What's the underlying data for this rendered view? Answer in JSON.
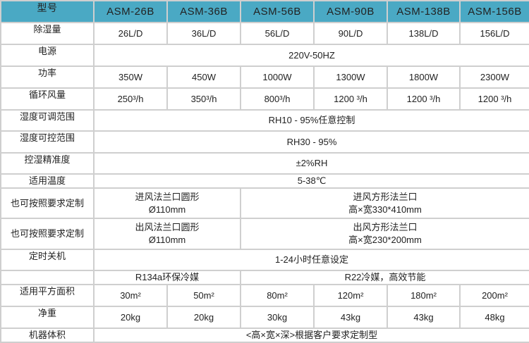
{
  "header": {
    "label": "型号",
    "models": [
      "ASM-26B",
      "ASM-36B",
      "ASM-56B",
      "ASM-90B",
      "ASM-138B",
      "ASM-156B"
    ]
  },
  "colors": {
    "header_bg": "#4aa9c4",
    "border": "#cfcfcf"
  },
  "rows": {
    "dehumid": {
      "label": "除湿量",
      "values": [
        "26L/D",
        "36L/D",
        "56L/D",
        "90L/D",
        "138L/D",
        "156L/D"
      ]
    },
    "power_supply": {
      "label": "电源",
      "value": "220V-50HZ"
    },
    "power": {
      "label": "功率",
      "values": [
        "350W",
        "450W",
        "1000W",
        "1300W",
        "1800W",
        "2300W"
      ]
    },
    "airflow": {
      "label": "循环风量",
      "values": [
        "250³/h",
        "350³/h",
        "800³/h",
        "1200 ³/h",
        "1200 ³/h",
        "1200 ³/h"
      ]
    },
    "adj_range": {
      "label": "湿度可调范围",
      "value": "RH10 - 95%任意控制"
    },
    "ctrl_range": {
      "label": "湿度可控范围",
      "value": "RH30 - 95%"
    },
    "precision": {
      "label": "控湿精准度",
      "value": "±2%RH"
    },
    "temp": {
      "label": "适用温度",
      "value": "5-38℃"
    },
    "inlet": {
      "label": "也可按照要求定制",
      "a1": "进风法兰口圆形",
      "a2": "Ø110mm",
      "b1": "进风方形法兰口",
      "b2": "高×宽330*410mm"
    },
    "outlet": {
      "label": "也可按照要求定制",
      "a1": "出风法兰口圆形",
      "a2": "Ø110mm",
      "b1": "出风方形法兰口",
      "b2": "高×宽230*200mm"
    },
    "timer": {
      "label": "定时关机",
      "value": "1-24小时任意设定"
    },
    "refrigerant": {
      "label": "",
      "a": "R134a环保冷媒",
      "b": "R22冷媒，高效节能"
    },
    "area": {
      "label": "适用平方面积",
      "values": [
        "30m²",
        "50m²",
        "80m²",
        "120m²",
        "180m²",
        "200m²"
      ]
    },
    "weight": {
      "label": "净重",
      "values": [
        "20kg",
        "20kg",
        "30kg",
        "43kg",
        "43kg",
        "48kg"
      ]
    },
    "size": {
      "label": "机器体积",
      "value": "<高×宽×深>根据客户要求定制型"
    }
  }
}
